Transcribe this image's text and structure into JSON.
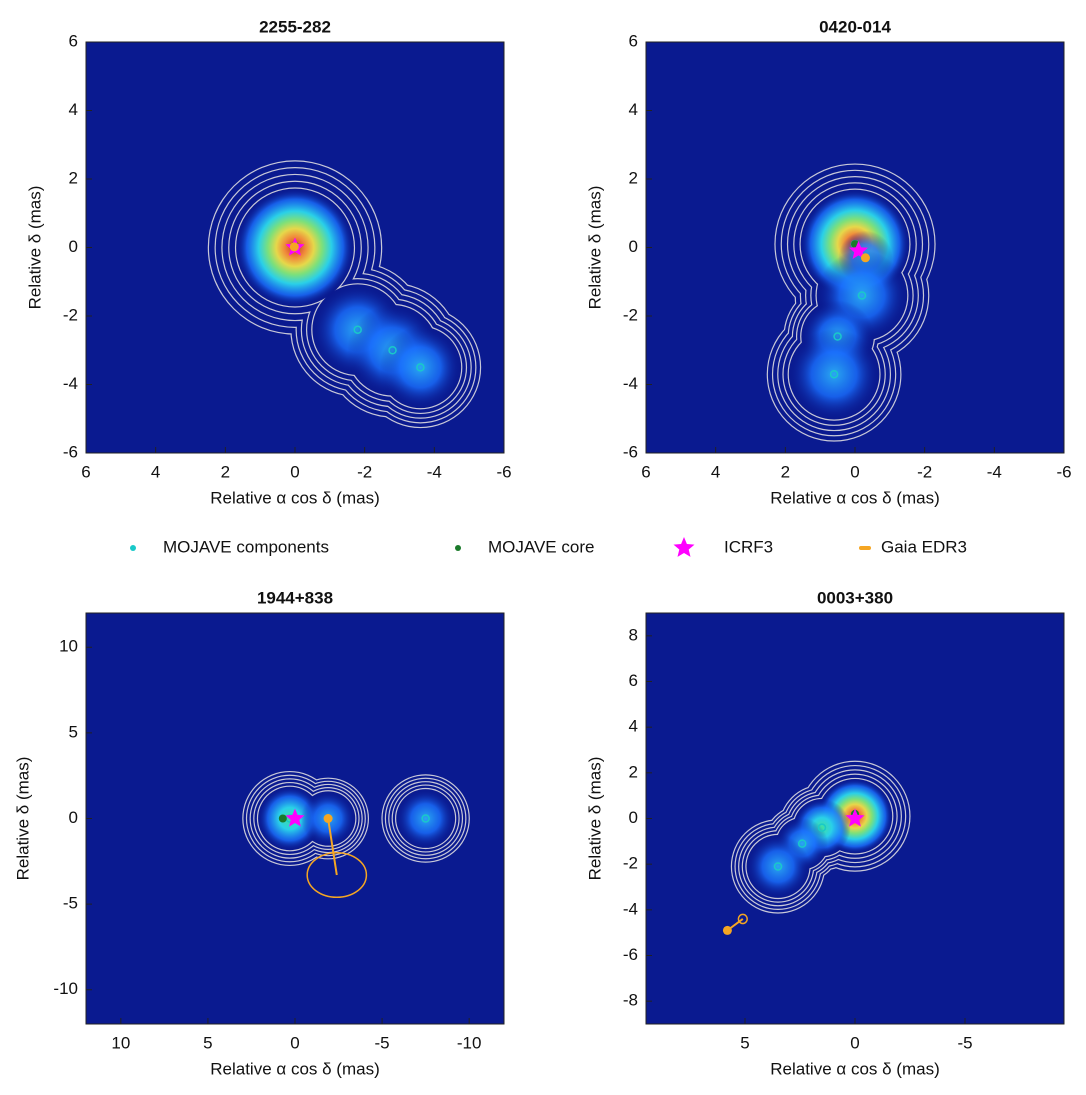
{
  "chart_data": [
    {
      "type": "image",
      "title": "2255-282",
      "xlabel": "Relative α cos δ (mas)",
      "ylabel": "Relative δ (mas)",
      "xlim": [
        6,
        -6
      ],
      "ylim": [
        -6,
        6
      ],
      "xticks": [
        6,
        4,
        2,
        0,
        -2,
        -4,
        -6
      ],
      "yticks": [
        -6,
        -4,
        -2,
        0,
        2,
        4,
        6
      ],
      "components": [
        {
          "x": 0,
          "y": 0,
          "size": 1.3
        },
        {
          "x": -1.8,
          "y": -2.4,
          "size": 1.0
        },
        {
          "x": -2.8,
          "y": -3.0,
          "size": 1.0
        },
        {
          "x": -3.6,
          "y": -3.5,
          "size": 0.9
        }
      ],
      "core": {
        "x": 0,
        "y": 0.05
      },
      "icrf3": {
        "x": 0,
        "y": 0
      },
      "gaia": {
        "x": 0.02,
        "y": 0.02
      }
    },
    {
      "type": "image",
      "title": "0420-014",
      "xlabel": "Relative α cos δ (mas)",
      "ylabel": "Relative δ (mas)",
      "xlim": [
        6,
        -6
      ],
      "ylim": [
        -6,
        6
      ],
      "xticks": [
        6,
        4,
        2,
        0,
        -2,
        -4,
        -6
      ],
      "yticks": [
        -6,
        -4,
        -2,
        0,
        2,
        4,
        6
      ],
      "components": [
        {
          "x": 0,
          "y": 0.1,
          "size": 1.2
        },
        {
          "x": -0.3,
          "y": -0.3,
          "size": 0.6
        },
        {
          "x": -0.2,
          "y": -1.4,
          "size": 1.0
        },
        {
          "x": 0.5,
          "y": -2.6,
          "size": 0.8
        },
        {
          "x": 0.6,
          "y": -3.7,
          "size": 1.0
        }
      ],
      "core": {
        "x": 0,
        "y": 0.1
      },
      "icrf3": {
        "x": -0.1,
        "y": -0.1
      },
      "gaia": {
        "x": -0.3,
        "y": -0.3
      }
    },
    {
      "type": "image",
      "title": "1944+838",
      "xlabel": "Relative α cos δ (mas)",
      "ylabel": "Relative δ (mas)",
      "xlim": [
        12,
        -12
      ],
      "ylim": [
        -12,
        12
      ],
      "xticks": [
        10,
        5,
        0,
        -5,
        -10
      ],
      "yticks": [
        -10,
        -5,
        0,
        5,
        10
      ],
      "components": [
        {
          "x": 0.3,
          "y": 0,
          "size": 1.4
        },
        {
          "x": -1.9,
          "y": 0,
          "size": 1.2
        },
        {
          "x": -7.5,
          "y": 0,
          "size": 1.3
        }
      ],
      "core": {
        "x": 0.7,
        "y": 0
      },
      "icrf3": {
        "x": 0,
        "y": 0
      },
      "gaia": {
        "x": -1.9,
        "y": 0
      },
      "gaia_ellipse": {
        "x": -2.4,
        "y": -3.3,
        "rx": 1.7,
        "ry": 1.3
      }
    },
    {
      "type": "image",
      "title": "0003+380",
      "xlabel": "Relative α cos δ (mas)",
      "ylabel": "Relative δ (mas)",
      "xlim": [
        9.5,
        -9.5
      ],
      "ylim": [
        -9,
        9
      ],
      "xticks": [
        5,
        0,
        -5
      ],
      "yticks": [
        -8,
        -6,
        -4,
        -2,
        0,
        2,
        4,
        6,
        8
      ],
      "components": [
        {
          "x": 0,
          "y": 0.1,
          "size": 1.3
        },
        {
          "x": 1.5,
          "y": -0.4,
          "size": 1.0
        },
        {
          "x": 2.4,
          "y": -1.1,
          "size": 0.9
        },
        {
          "x": 3.5,
          "y": -2.1,
          "size": 1.1
        }
      ],
      "core": {
        "x": 0,
        "y": 0.2
      },
      "icrf3": {
        "x": 0,
        "y": 0
      },
      "gaia": {
        "x": 5.8,
        "y": -4.9
      },
      "gaia_ellipse": {
        "x": 5.1,
        "y": -4.4,
        "rx": 0.2,
        "ry": 0.2
      }
    }
  ],
  "legend": [
    {
      "name": "MOJAVE components",
      "color": "#19c9c9",
      "marker": "dot"
    },
    {
      "name": "MOJAVE core",
      "color": "#1a7a2a",
      "marker": "dot"
    },
    {
      "name": "ICRF3",
      "color": "#ff00ff",
      "marker": "star"
    },
    {
      "name": "Gaia EDR3",
      "color": "#f5a623",
      "marker": "dash"
    }
  ]
}
